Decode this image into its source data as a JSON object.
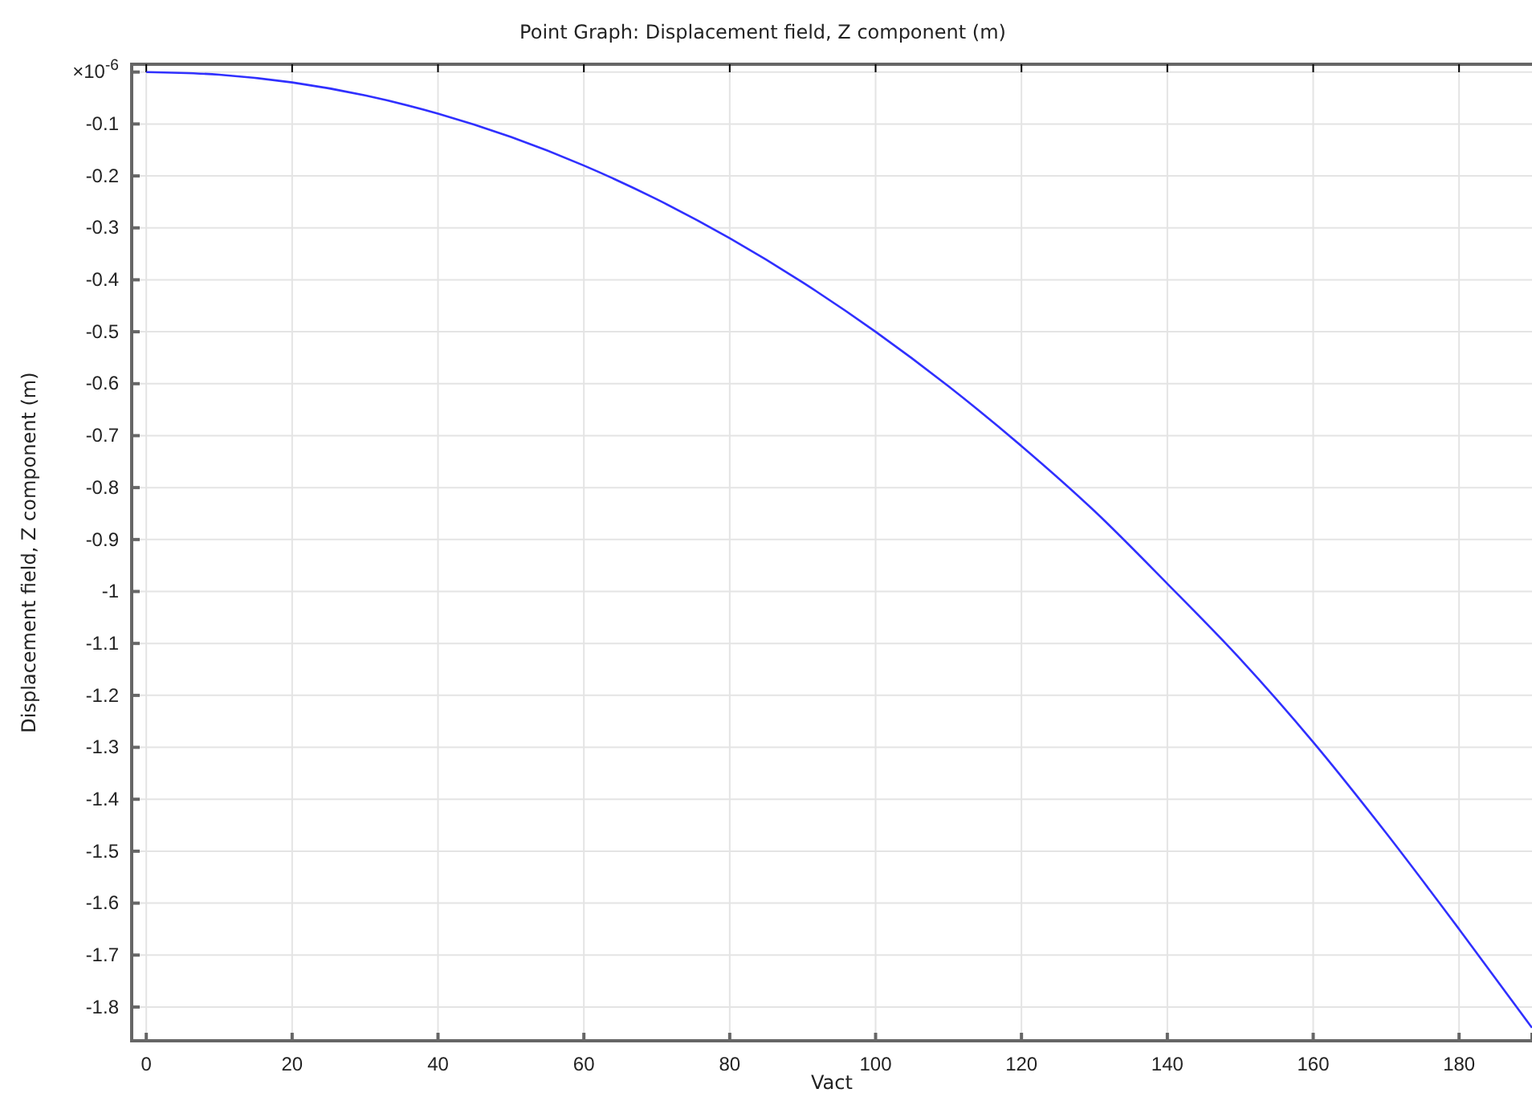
{
  "chart_data": {
    "type": "line",
    "title": "Point Graph: Displacement field, Z component (m)",
    "xlabel": "Vact",
    "ylabel": "Displacement field, Z component (m)",
    "x": [
      0,
      10,
      20,
      30,
      40,
      50,
      60,
      70,
      80,
      90,
      100,
      110,
      120,
      130,
      140,
      150,
      160,
      170,
      180,
      190
    ],
    "series": [
      {
        "color": "#3030ff",
        "values": [
          0,
          -0.005,
          -0.02,
          -0.045,
          -0.08,
          -0.125,
          -0.18,
          -0.245,
          -0.32,
          -0.405,
          -0.5,
          -0.605,
          -0.72,
          -0.845,
          -0.985,
          -1.13,
          -1.29,
          -1.465,
          -1.65,
          -1.84
        ]
      }
    ],
    "xlim": [
      -2,
      190
    ],
    "ylim": [
      -1.865,
      0.015
    ],
    "xticks": [
      0,
      20,
      40,
      60,
      80,
      100,
      120,
      140,
      160,
      180
    ],
    "yticks": [
      {
        "value": 0,
        "label": "×10$^{-6}$"
      },
      -0.1,
      -0.2,
      -0.3,
      -0.4,
      -0.5,
      -0.6,
      -0.7,
      -0.8,
      -0.9,
      -1,
      -1.1,
      -1.2,
      -1.3,
      -1.4,
      -1.5,
      -1.6,
      -1.7,
      -1.8
    ],
    "grid": true,
    "marker": "none",
    "line_style": "solid"
  }
}
